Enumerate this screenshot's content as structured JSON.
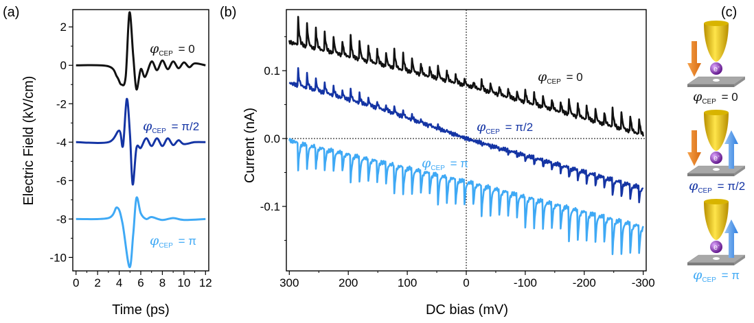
{
  "panel_labels": {
    "a": "(a)",
    "b": "(b)",
    "c": "(c)"
  },
  "colors": {
    "black": "#111111",
    "dark_blue": "#1434a4",
    "light_blue": "#3fa9f5",
    "tip_gold": "#e6c200",
    "arrow_orange": "#f08a24",
    "arrow_blue": "#3b8ee8",
    "electron": "#7a1fa2",
    "substrate": "#9c9c9c"
  },
  "cep_symbol": "φ",
  "cep_sub": "CEP",
  "chart_data": [
    {
      "type": "line",
      "panel": "(a)",
      "xlabel": "Time (ps)",
      "ylabel": "Electric Field (kV/cm)",
      "xlim": [
        -0.3,
        12.3
      ],
      "ylim": [
        -10.7,
        2.9
      ],
      "xticks": [
        0,
        2,
        4,
        6,
        8,
        10,
        12
      ],
      "yticks": [
        2,
        0,
        -2,
        -4,
        -6,
        -8,
        -10
      ],
      "series": [
        {
          "name": "φCEP = 0",
          "label_value": "= 0",
          "color": "#111111",
          "offset": 0,
          "cep": 0,
          "points": [
            [
              0,
              0
            ],
            [
              3,
              -0.05
            ],
            [
              3.8,
              -0.6
            ],
            [
              4.2,
              -1.0
            ],
            [
              4.6,
              -0.6
            ],
            [
              4.95,
              2.75
            ],
            [
              5.3,
              0.5
            ],
            [
              5.6,
              -1.25
            ],
            [
              6.0,
              -0.2
            ],
            [
              6.4,
              -0.6
            ],
            [
              7,
              0.2
            ],
            [
              7.5,
              -0.25
            ],
            [
              8,
              0.25
            ],
            [
              8.5,
              -0.2
            ],
            [
              9,
              0.2
            ],
            [
              9.5,
              -0.15
            ],
            [
              10,
              0.15
            ],
            [
              10.5,
              -0.1
            ],
            [
              11,
              0.1
            ],
            [
              12,
              0
            ]
          ]
        },
        {
          "name": "φCEP = π/2",
          "label_value": "= π/2",
          "color": "#1434a4",
          "offset": -4,
          "cep": 1.5708,
          "points": [
            [
              0,
              -4
            ],
            [
              3,
              -4
            ],
            [
              4.0,
              -3.4
            ],
            [
              4.35,
              -4.2
            ],
            [
              4.7,
              -1.75
            ],
            [
              5.0,
              -3.6
            ],
            [
              5.25,
              -6.2
            ],
            [
              5.6,
              -4.3
            ],
            [
              6.0,
              -4.3
            ],
            [
              6.5,
              -3.8
            ],
            [
              7,
              -4.2
            ],
            [
              7.5,
              -3.8
            ],
            [
              8,
              -4.2
            ],
            [
              8.5,
              -3.8
            ],
            [
              9,
              -4.15
            ],
            [
              9.5,
              -3.9
            ],
            [
              10,
              -4.1
            ],
            [
              11,
              -4.0
            ],
            [
              12,
              -4.0
            ]
          ]
        },
        {
          "name": "φCEP = π",
          "label_value": "= π",
          "color": "#3fa9f5",
          "offset": -8,
          "cep": 3.1416,
          "points": [
            [
              0,
              -8
            ],
            [
              3,
              -7.95
            ],
            [
              3.8,
              -7.4
            ],
            [
              4.3,
              -8.2
            ],
            [
              4.95,
              -10.5
            ],
            [
              5.3,
              -8.8
            ],
            [
              5.6,
              -6.9
            ],
            [
              6.0,
              -7.7
            ],
            [
              6.5,
              -8.0
            ],
            [
              7,
              -7.9
            ],
            [
              8,
              -8.05
            ],
            [
              9,
              -7.95
            ],
            [
              10,
              -8.05
            ],
            [
              12,
              -8.0
            ]
          ]
        }
      ]
    },
    {
      "type": "line",
      "panel": "(b)",
      "xlabel": "DC bias (mV)",
      "ylabel": "Current (nA)",
      "xlim": [
        305,
        -305
      ],
      "ylim": [
        -0.195,
        0.19
      ],
      "xticks": [
        300,
        200,
        100,
        0,
        -100,
        -200,
        -300
      ],
      "xtick_labels": [
        "300",
        "200",
        "100",
        "0",
        "-100",
        "-200",
        "-300"
      ],
      "yticks": [
        0.1,
        0.0,
        -0.1
      ],
      "ytick_labels": [
        "0.1",
        "0.0",
        "-0.1"
      ],
      "series": [
        {
          "name": "φCEP = 0",
          "label_value": "= 0",
          "color": "#111111",
          "baseline": [
            [
              300,
              0.142
            ],
            [
              0,
              0.078
            ],
            [
              -300,
              0.005
            ]
          ],
          "spike_direction": "up",
          "spike_amplitude": [
            [
              300,
              0.04
            ],
            [
              100,
              0.03
            ],
            [
              0,
              0.015
            ],
            [
              -300,
              0.034
            ]
          ]
        },
        {
          "name": "φCEP = π/2",
          "label_value": "= π/2",
          "color": "#1434a4",
          "baseline": [
            [
              300,
              0.082
            ],
            [
              150,
              0.045
            ],
            [
              0,
              0.0
            ],
            [
              -300,
              -0.073
            ]
          ],
          "spike_direction": "up-then-down",
          "spike_amplitude": [
            [
              300,
              0.024
            ],
            [
              100,
              0.01
            ],
            [
              0,
              0.0
            ],
            [
              -300,
              -0.03
            ]
          ]
        },
        {
          "name": "φCEP = π",
          "label_value": "= π",
          "color": "#3fa9f5",
          "baseline": [
            [
              300,
              -0.003
            ],
            [
              0,
              -0.063
            ],
            [
              -300,
              -0.13
            ]
          ],
          "spike_direction": "down",
          "spike_amplitude": [
            [
              300,
              -0.04
            ],
            [
              100,
              -0.05
            ],
            [
              0,
              -0.05
            ],
            [
              -300,
              -0.06
            ]
          ]
        }
      ],
      "spike_start_mV": 285,
      "spike_spacing_mV": 14.8,
      "reference_lines": {
        "zero_current": "dotted",
        "zero_bias": "dotted"
      }
    }
  ],
  "schematic": {
    "panel": "(c)",
    "electron_label": "e",
    "electron_sup": "-",
    "rows": [
      {
        "label_value": "= 0",
        "label_color": "#111111",
        "arrows": [
          "down-orange"
        ]
      },
      {
        "label_value": "= π/2",
        "label_color": "#1434a4",
        "arrows": [
          "down-orange",
          "up-blue"
        ]
      },
      {
        "label_value": "= π",
        "label_color": "#3fa9f5",
        "arrows": [
          "up-blue"
        ]
      }
    ]
  }
}
